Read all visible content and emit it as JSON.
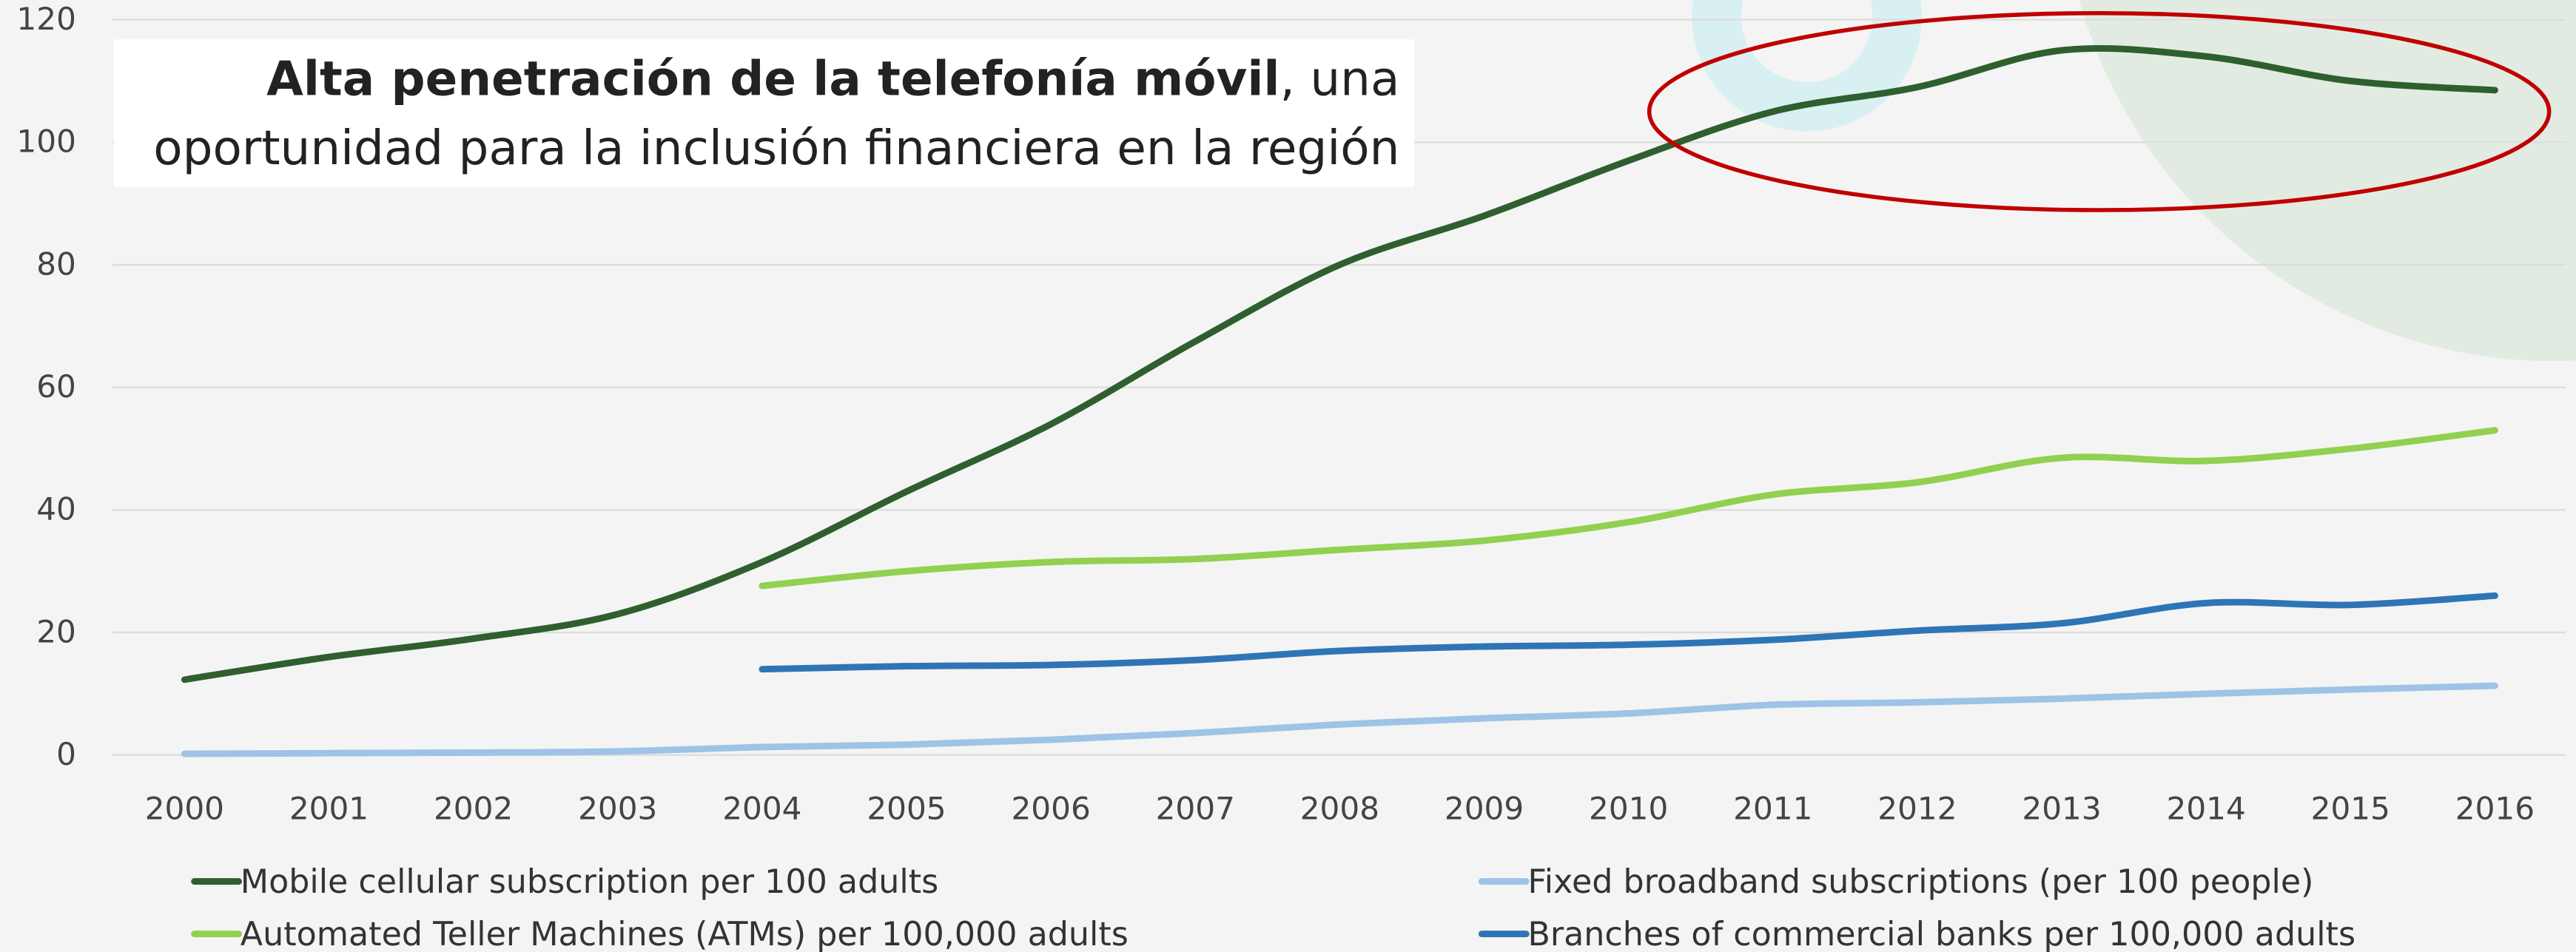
{
  "chart_data": {
    "type": "line",
    "title": {
      "bold": "Alta penetración de la telefonía móvil",
      "line1_rest": ", una",
      "line2": "oportunidad para la inclusión financiera en la región"
    },
    "categories": [
      "2000",
      "2001",
      "2002",
      "2003",
      "2004",
      "2005",
      "2006",
      "2007",
      "2008",
      "2009",
      "2010",
      "2011",
      "2012",
      "2013",
      "2014",
      "2015",
      "2016"
    ],
    "ylim": [
      0,
      120
    ],
    "yticks": [
      0,
      20,
      40,
      60,
      80,
      100,
      120
    ],
    "grid": true,
    "legend": "bottom",
    "series": [
      {
        "name": "Mobile cellular subscription per 100 adults",
        "color": "#2f5f2f",
        "values": [
          12.3,
          16,
          19,
          23,
          31.5,
          43,
          54,
          67.5,
          80,
          88,
          97,
          105,
          109,
          115,
          114,
          110,
          108.5
        ]
      },
      {
        "name": "Automated Teller Machines (ATMs) per 100,000 adults",
        "color": "#92d050",
        "values": [
          null,
          null,
          null,
          null,
          27.6,
          30,
          31.5,
          32,
          33.5,
          35,
          38,
          42.5,
          44.5,
          48.5,
          48,
          50,
          53
        ]
      },
      {
        "name": "Fixed broadband subscriptions (per 100 people)",
        "color": "#9dc3e6",
        "values": [
          0.2,
          0.3,
          0.4,
          0.6,
          1.3,
          1.7,
          2.5,
          3.6,
          5,
          6,
          6.8,
          8.2,
          8.6,
          9.2,
          10,
          10.7,
          11.3
        ]
      },
      {
        "name": "Branches of commercial banks per 100,000 adults",
        "color": "#2e75b6",
        "values": [
          null,
          null,
          null,
          null,
          14,
          14.5,
          14.7,
          15.5,
          17,
          17.7,
          18,
          18.8,
          20.3,
          21.5,
          24.8,
          24.5,
          26
        ]
      }
    ]
  }
}
